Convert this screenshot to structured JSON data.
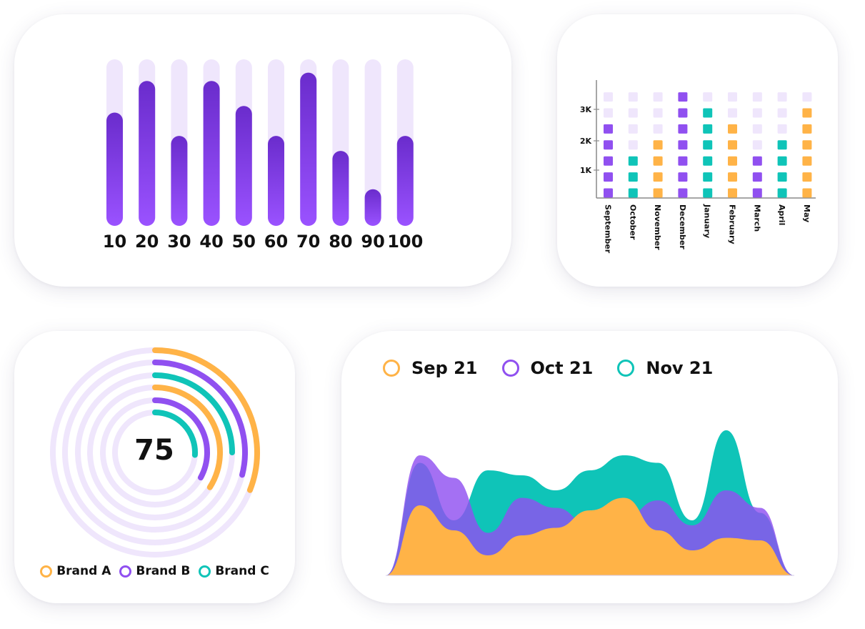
{
  "colors": {
    "purple": "#9050f0",
    "purple_dark": "#6a2ccc",
    "purple_light": "#efe6fc",
    "orange": "#ffb347",
    "teal": "#0fc4b8",
    "ring_bg": "#efe6fc",
    "axis": "#8a8a8a"
  },
  "chart_data": [
    {
      "type": "bar",
      "title": "",
      "categories": [
        "10",
        "20",
        "30",
        "40",
        "50",
        "60",
        "70",
        "80",
        "90",
        "100"
      ],
      "values": [
        68,
        87,
        54,
        87,
        72,
        54,
        92,
        45,
        22,
        54
      ],
      "ylim": [
        0,
        100
      ],
      "background_bars": true
    },
    {
      "type": "heatmap",
      "title": "",
      "categories": [
        "September",
        "October",
        "November",
        "December",
        "January",
        "February",
        "March",
        "April",
        "May"
      ],
      "y_ticks": [
        "1K",
        "2K",
        "3K"
      ],
      "rows": 7,
      "columns": [
        [
          "purple",
          "purple",
          "purple",
          "purple",
          "purple",
          "light",
          "light"
        ],
        [
          "teal",
          "teal",
          "teal",
          "light",
          "light",
          "light",
          "light"
        ],
        [
          "orange",
          "orange",
          "orange",
          "orange",
          "light",
          "light",
          "light"
        ],
        [
          "purple",
          "purple",
          "purple",
          "purple",
          "purple",
          "purple",
          "purple"
        ],
        [
          "teal",
          "teal",
          "teal",
          "teal",
          "teal",
          "teal",
          "light"
        ],
        [
          "orange",
          "orange",
          "orange",
          "orange",
          "orange",
          "light",
          "light"
        ],
        [
          "purple",
          "purple",
          "purple",
          "light",
          "light",
          "light",
          "light"
        ],
        [
          "teal",
          "teal",
          "teal",
          "teal",
          "light",
          "light",
          "light"
        ],
        [
          "orange",
          "orange",
          "orange",
          "orange",
          "orange",
          "orange",
          "light"
        ]
      ]
    },
    {
      "type": "radial",
      "center_value": "75",
      "rings": [
        {
          "series": "Brand A",
          "value": 31
        },
        {
          "series": "Brand B",
          "value": 29
        },
        {
          "series": "Brand C",
          "value": 25
        },
        {
          "series": "Brand A",
          "value": 34
        },
        {
          "series": "Brand B",
          "value": 33
        },
        {
          "series": "Brand C",
          "value": 26
        }
      ],
      "legend": [
        "Brand A",
        "Brand B",
        "Brand C"
      ]
    },
    {
      "type": "area",
      "title": "",
      "x": [
        0,
        1,
        2,
        3,
        4,
        5,
        6,
        7,
        8,
        9,
        10,
        11,
        12
      ],
      "series": [
        {
          "name": "Sep 21",
          "values": [
            0,
            28,
            18,
            8,
            16,
            19,
            26,
            31,
            18,
            10,
            15,
            14,
            0
          ]
        },
        {
          "name": "Oct 21",
          "values": [
            0,
            48,
            39,
            17,
            31,
            27,
            20,
            23,
            30,
            20,
            34,
            27,
            0
          ]
        },
        {
          "name": "Nov 21",
          "values": [
            0,
            45,
            22,
            42,
            40,
            34,
            42,
            48,
            45,
            22,
            58,
            25,
            0
          ]
        }
      ],
      "legend": [
        "Sep 21",
        "Oct 21",
        "Nov 21"
      ]
    }
  ],
  "bar_chart": {
    "ticks": [
      "10",
      "20",
      "30",
      "40",
      "50",
      "60",
      "70",
      "80",
      "90",
      "100"
    ]
  },
  "square_chart": {
    "months": [
      "September",
      "October",
      "November",
      "December",
      "January",
      "February",
      "March",
      "April",
      "May"
    ],
    "y_ticks": [
      "1K",
      "2K",
      "3K"
    ]
  },
  "radial_chart": {
    "center_value": "75",
    "legend": [
      {
        "label": "Brand A",
        "color": "#ffb347"
      },
      {
        "label": "Brand B",
        "color": "#9050f0"
      },
      {
        "label": "Brand C",
        "color": "#0fc4b8"
      }
    ]
  },
  "area_chart": {
    "legend": [
      {
        "label": "Sep 21",
        "color": "#ffb347"
      },
      {
        "label": "Oct 21",
        "color": "#9050f0"
      },
      {
        "label": "Nov 21",
        "color": "#0fc4b8"
      }
    ]
  }
}
